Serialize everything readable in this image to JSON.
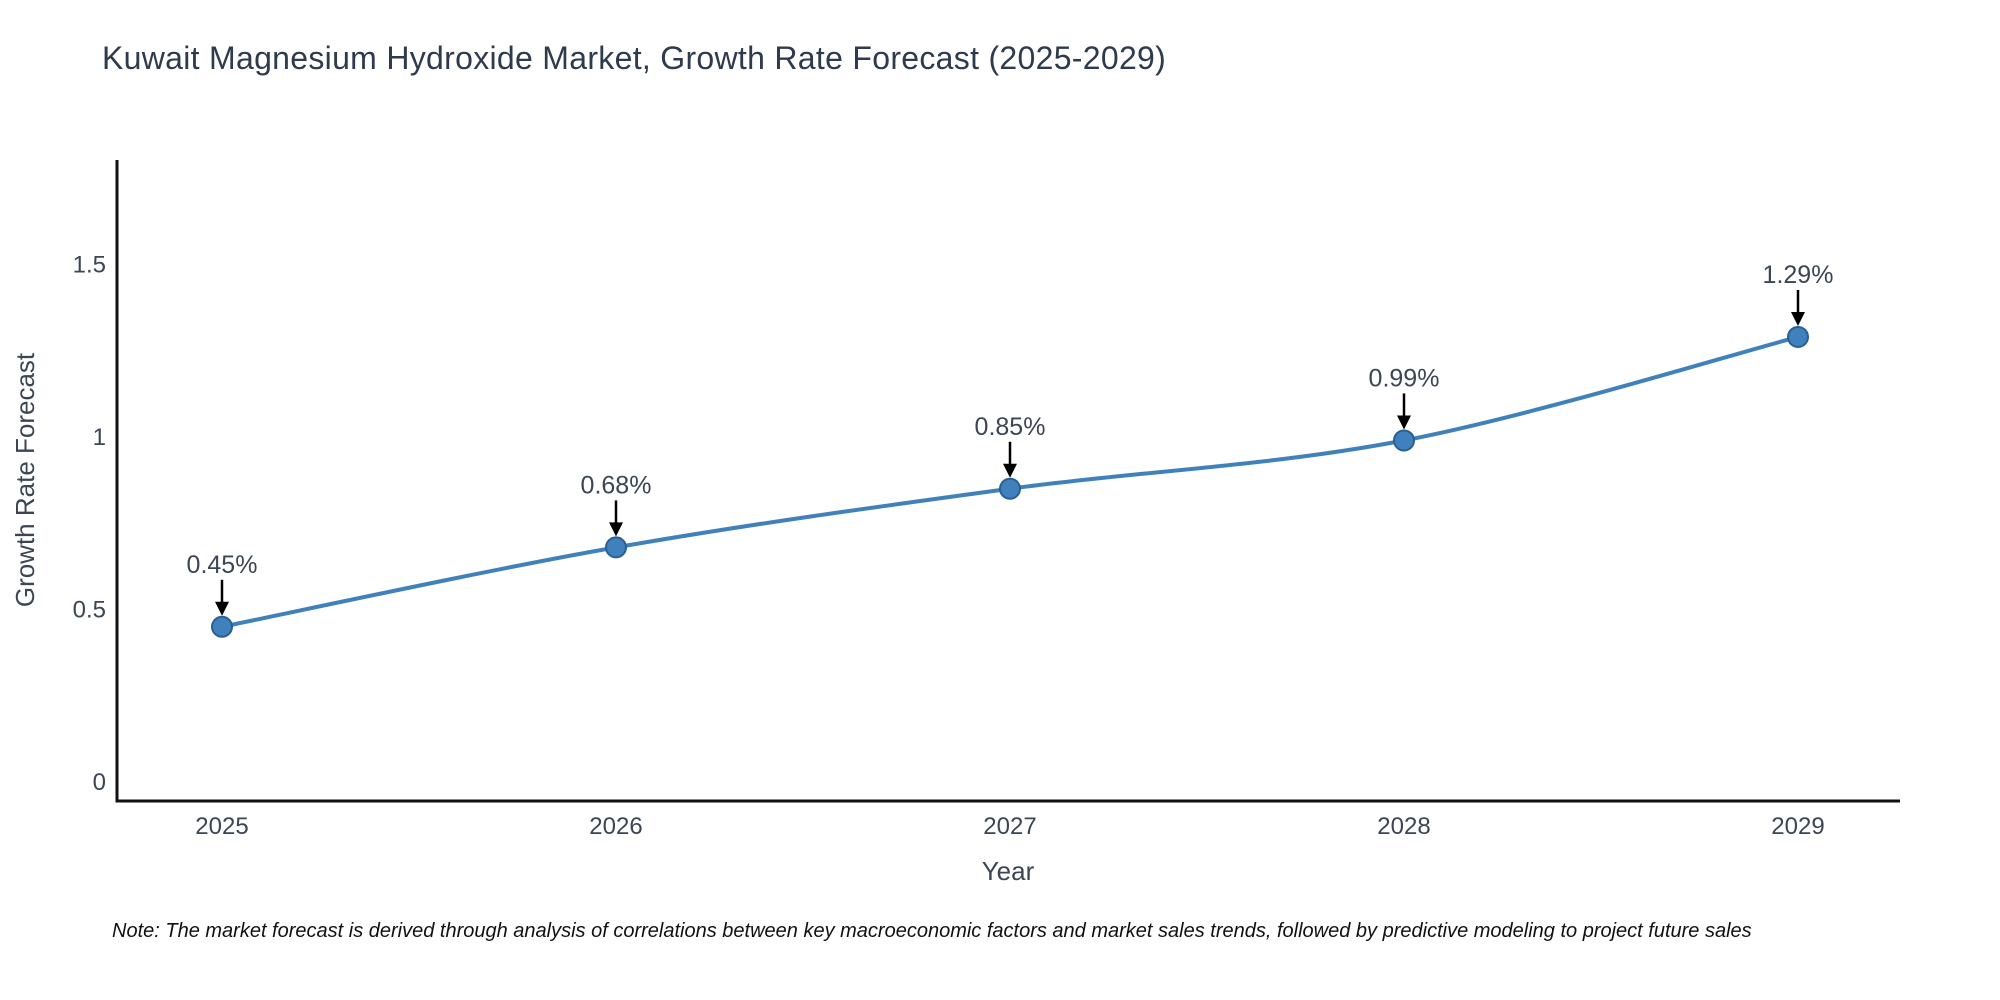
{
  "title": "Kuwait Magnesium Hydroxide Market, Growth Rate Forecast (2025-2029)",
  "note": "Note: The market forecast is derived through analysis of correlations between key macroeconomic factors and market sales trends, followed by predictive modeling to project future sales",
  "chart_data": {
    "type": "line",
    "title": "Kuwait Magnesium Hydroxide Market, Growth Rate Forecast (2025-2029)",
    "xlabel": "Year",
    "ylabel": "Growth Rate Forecast",
    "x": [
      2025,
      2026,
      2027,
      2028,
      2029
    ],
    "series": [
      {
        "name": "Growth Rate Forecast",
        "values": [
          0.45,
          0.68,
          0.85,
          0.99,
          1.29
        ]
      }
    ],
    "point_labels": [
      "0.45%",
      "0.68%",
      "0.85%",
      "0.99%",
      "1.29%"
    ],
    "xtick_labels": [
      "2025",
      "2026",
      "2027",
      "2028",
      "2029"
    ],
    "ytick_values": [
      0,
      0.5,
      1,
      1.5
    ],
    "ytick_labels": [
      "0",
      "0.5",
      "1",
      "1.5"
    ],
    "ylim": [
      -0.06,
      1.8
    ],
    "grid": false,
    "legend_position": "none",
    "line_style": "spline",
    "annotation_style": "arrow-down-to-point",
    "colors": {
      "line": "#4181bb",
      "marker_fill": "#3f80bd",
      "marker_edge": "#2a5f93",
      "arrow": "#000000",
      "axis_line": "#111111",
      "tick_text": "#3b4554",
      "annotation_text": "#3b4554",
      "title_text": "#2e3a4e"
    }
  }
}
